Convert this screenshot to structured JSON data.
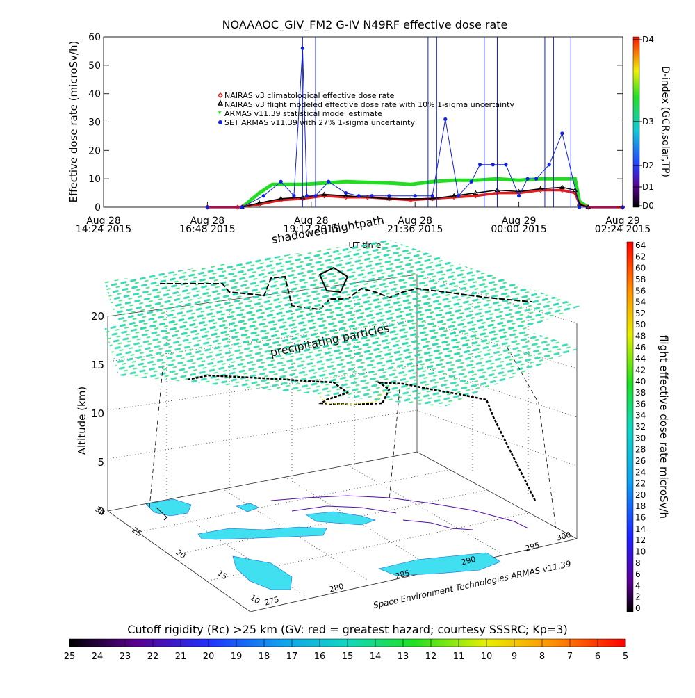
{
  "chart_data": [
    {
      "type": "line",
      "title": "NOAAAOC_GIV_FM2 G-IV   N49RF  effective dose rate",
      "ylabel": "Effective dose rate (microSv/h)",
      "xlabel": "UT time",
      "ylim": [
        0,
        60
      ],
      "yticks": [
        "0",
        "10",
        "20",
        "30",
        "40",
        "50",
        "60"
      ],
      "xlim_hours": [
        14.4,
        26.4
      ],
      "xticks": [
        {
          "h": 14.4,
          "line1": "Aug 28",
          "line2": "14:24 2015"
        },
        {
          "h": 16.8,
          "line1": "Aug 28",
          "line2": "16:48 2015"
        },
        {
          "h": 19.2,
          "line1": "Aug 28",
          "line2": "19:12 2015"
        },
        {
          "h": 21.6,
          "line1": "Aug 28",
          "line2": "21:36 2015"
        },
        {
          "h": 24.0,
          "line1": "Aug 29",
          "line2": "00:00 2015"
        },
        {
          "h": 26.4,
          "line1": "Aug 29",
          "line2": "02:24 2015"
        }
      ],
      "legend_position": "center",
      "series": [
        {
          "name": "NAIRAS v3 climatological effective dose rate",
          "color": "#e02020",
          "marker": "diamond",
          "x": [
            16.8,
            17.5,
            18.0,
            18.5,
            19.0,
            19.5,
            20.0,
            20.5,
            21.0,
            21.5,
            22.0,
            22.5,
            23.0,
            23.5,
            24.0,
            24.5,
            25.0,
            25.3,
            25.4,
            25.6,
            26.4
          ],
          "y": [
            0,
            0,
            1,
            2.5,
            3,
            4,
            3.5,
            3.5,
            3,
            2.5,
            3,
            3.5,
            4,
            5,
            5,
            6,
            6,
            5,
            1,
            0,
            0
          ]
        },
        {
          "name": "NAIRAS v3 flight modeled effective dose rate with 10% 1-sigma uncertainty",
          "color": "#000000",
          "marker": "triangle",
          "x": [
            17.6,
            18.0,
            18.5,
            19.0,
            19.5,
            20.0,
            21.0,
            22.0,
            22.5,
            23.0,
            23.5,
            24.0,
            24.5,
            25.0,
            25.3,
            25.4,
            25.6
          ],
          "y": [
            0,
            1.5,
            3,
            3.5,
            4.5,
            4,
            3,
            3,
            4,
            5,
            6,
            5.5,
            6.5,
            7,
            6,
            1,
            0
          ]
        },
        {
          "name": "ARMAS v11.39 statistical model estimate",
          "color": "#22dd22",
          "marker": "asterisk",
          "x": [
            17.6,
            18.0,
            18.3,
            19.0,
            19.5,
            20.0,
            21.0,
            21.5,
            22.0,
            22.5,
            23.0,
            23.5,
            24.0,
            24.5,
            25.0,
            25.3,
            25.4,
            25.6
          ],
          "y": [
            0,
            5,
            8,
            8,
            8.5,
            9,
            8.5,
            8,
            9,
            9.5,
            9.5,
            10,
            9.5,
            10,
            10,
            10,
            2,
            0
          ]
        },
        {
          "name": "SET ARMAS v11.39 with 27% 1-sigma uncertainty",
          "color": "#1020e0",
          "marker": "circle",
          "x": [
            16.8,
            17.6,
            18.1,
            18.5,
            18.8,
            19.0,
            19.1,
            19.3,
            19.6,
            20.0,
            20.3,
            20.6,
            21.0,
            21.6,
            22.0,
            22.3,
            22.6,
            22.9,
            23.1,
            23.4,
            23.7,
            24.0,
            24.2,
            24.4,
            24.7,
            25.0,
            25.4,
            26.4
          ],
          "y": [
            0,
            0,
            4,
            9,
            4,
            56,
            4,
            4,
            9,
            5,
            4,
            4,
            4,
            4,
            4,
            31,
            4,
            9,
            15,
            15,
            15,
            4,
            10,
            10,
            15,
            26,
            0,
            0
          ]
        }
      ]
    },
    {
      "type": "scatter",
      "title": "shadowed flightpath",
      "annotation": "precipitating particles",
      "zlabel": "Altitude (km)",
      "zticks": [
        "0",
        "5",
        "10",
        "15",
        "20"
      ],
      "xticks": [
        "275",
        "280",
        "285",
        "290",
        "295",
        "300"
      ],
      "yticks": [
        "10",
        "15",
        "20",
        "25",
        "30"
      ],
      "credit": "Space Environment Technologies ARMAS v11.39"
    }
  ],
  "dindex_colorbar": {
    "title": "D-index (GCR,solar,TP)",
    "labels": [
      "D0",
      "D1",
      "D2",
      "D3",
      "D4"
    ]
  },
  "flight_colorbar": {
    "title": "flight effective dose rate microSv/h",
    "labels": [
      "0",
      "2",
      "4",
      "6",
      "8",
      "10",
      "12",
      "14",
      "16",
      "18",
      "20",
      "22",
      "24",
      "26",
      "28",
      "30",
      "32",
      "34",
      "36",
      "38",
      "40",
      "42",
      "44",
      "46",
      "48",
      "50",
      "52",
      "54",
      "56",
      "58",
      "60",
      "62",
      "64"
    ]
  },
  "cutoff_colorbar": {
    "title": "Cutoff rigidity (Rc) >25 km (GV: red = greatest hazard; courtesy SSSRC; Kp=3)",
    "labels": [
      "25",
      "24",
      "23",
      "22",
      "21",
      "20",
      "19",
      "18",
      "17",
      "16",
      "15",
      "14",
      "13",
      "12",
      "11",
      "10",
      "9",
      "8",
      "7",
      "6",
      "5"
    ]
  }
}
